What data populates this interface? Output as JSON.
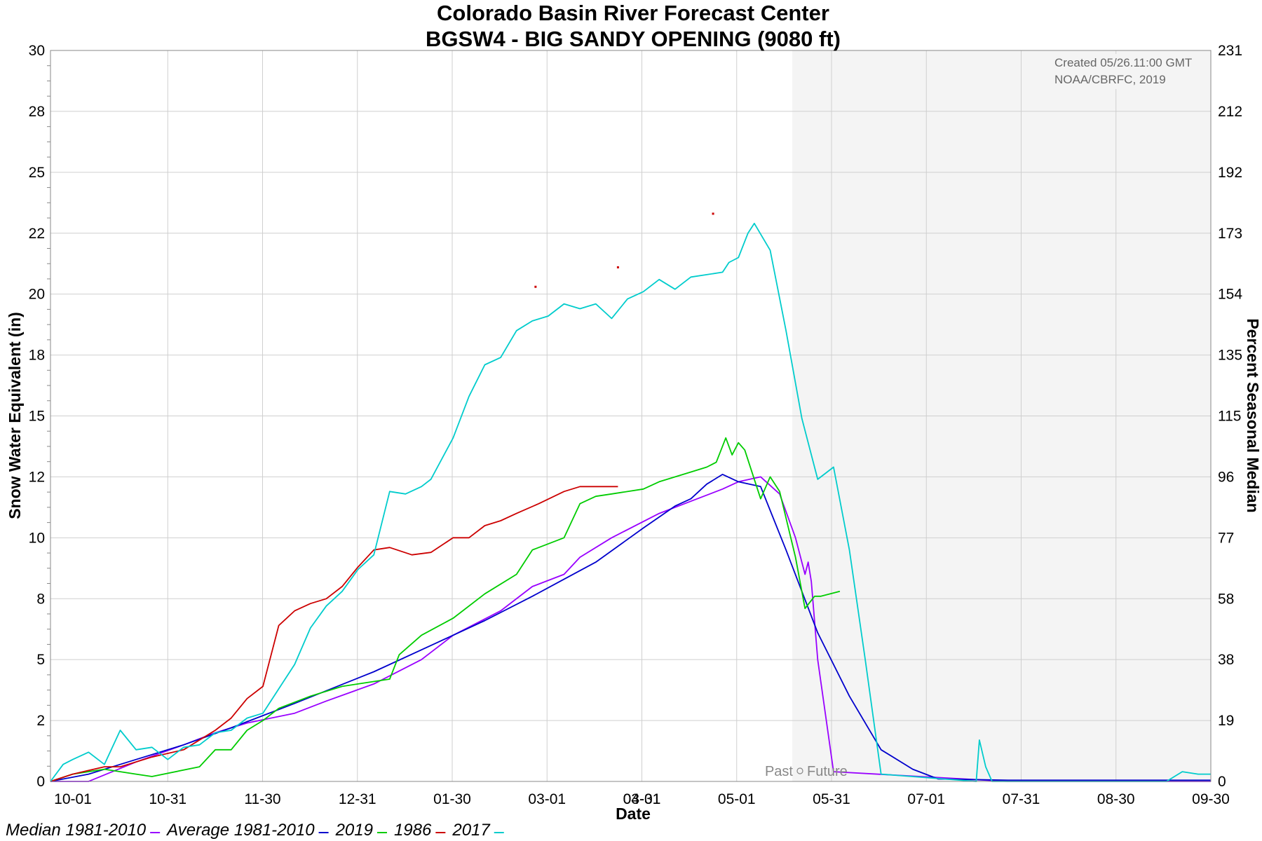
{
  "chart_data": {
    "type": "line",
    "title": "Colorado Basin River Forecast Center",
    "subtitle": "BGSW4 - BIG SANDY OPENING (9080 ft)",
    "xlabel": "Date",
    "ylabel": "Snow Water Equivalent (in)",
    "y2label": "Percent Seasonal Median",
    "x_ticks": [
      "10-01",
      "10-31",
      "11-30",
      "12-31",
      "01-30",
      "03-01",
      "03-31",
      "04-01",
      "05-01",
      "05-31",
      "07-01",
      "07-31",
      "08-30",
      "09-30"
    ],
    "y_ticks": [
      "0",
      "2",
      "5",
      "8",
      "10",
      "12",
      "15",
      "18",
      "20",
      "22",
      "25",
      "28",
      "30"
    ],
    "y2_ticks": [
      "0",
      "19",
      "38",
      "58",
      "77",
      "96",
      "115",
      "135",
      "154",
      "173",
      "192",
      "212",
      "231"
    ],
    "ylim": [
      0,
      30
    ],
    "y2lim": [
      0,
      231
    ],
    "x_range_days": [
      -2,
      364
    ],
    "grid": true,
    "forecast_start_day": 232,
    "forecast_region_label": {
      "past": "Past",
      "future": "Future"
    },
    "note": [
      "Created 05/26.11:00 GMT",
      "NOAA/CBRFC, 2019"
    ],
    "legend_position": "bottom",
    "series": [
      {
        "name": "Median 1981-2010",
        "color": "#9900ff",
        "x": [
          -2,
          10,
          25,
          40,
          50,
          60,
          75,
          85,
          100,
          115,
          125,
          140,
          150,
          160,
          165,
          175,
          190,
          200,
          210,
          215,
          222,
          228,
          233,
          236,
          237,
          238,
          240,
          245,
          300,
          320,
          360,
          364
        ],
        "y": [
          0,
          0,
          0.8,
          1.5,
          2,
          2.4,
          2.8,
          3.3,
          4,
          5,
          6,
          7,
          8,
          8.5,
          9.2,
          10,
          11,
          11.5,
          12,
          12.3,
          12.5,
          11.8,
          10,
          8.5,
          9,
          8.2,
          5,
          0.4,
          0,
          0,
          0,
          0
        ]
      },
      {
        "name": "Average 1981-2010",
        "color": "#0000cc",
        "x": [
          -2,
          10,
          25,
          40,
          55,
          75,
          100,
          120,
          135,
          150,
          160,
          170,
          185,
          195,
          200,
          205,
          210,
          215,
          222,
          226,
          230,
          235,
          240,
          250,
          260,
          270,
          278,
          300,
          330,
          360,
          364
        ],
        "y": [
          0,
          0.3,
          0.9,
          1.5,
          2.2,
          3.2,
          4.5,
          5.7,
          6.6,
          7.6,
          8.3,
          9,
          10.4,
          11.3,
          11.6,
          12.2,
          12.6,
          12.3,
          12.1,
          10.8,
          9.5,
          7.8,
          6.1,
          3.5,
          1.3,
          0.5,
          0.1,
          0.05,
          0.05,
          0.05,
          0.05
        ]
      },
      {
        "name": "2019",
        "color": "#00cc00",
        "x": [
          -2,
          5,
          15,
          25,
          30,
          45,
          50,
          55,
          60,
          65,
          70,
          80,
          90,
          95,
          105,
          108,
          115,
          125,
          135,
          145,
          150,
          160,
          165,
          170,
          175,
          185,
          190,
          200,
          205,
          208,
          211,
          213,
          215,
          217,
          222,
          225,
          228,
          233,
          236,
          239,
          241,
          247
        ],
        "y": [
          0,
          0.3,
          0.5,
          0.3,
          0.2,
          0.6,
          1.3,
          1.3,
          2.1,
          2.5,
          3,
          3.5,
          3.9,
          4,
          4.2,
          5.2,
          6,
          6.7,
          7.7,
          8.5,
          9.5,
          10,
          11.4,
          11.7,
          11.8,
          12,
          12.3,
          12.7,
          12.9,
          13.1,
          14.1,
          13.4,
          13.9,
          13.6,
          11.6,
          12.5,
          11.9,
          9.2,
          7.1,
          7.6,
          7.6,
          7.8
        ]
      },
      {
        "name": "1986",
        "color": "#cc0000",
        "x": [
          -2,
          5,
          15,
          20,
          30,
          40,
          50,
          55,
          60,
          65,
          70,
          75,
          80,
          85,
          90,
          95,
          100,
          105,
          112,
          118,
          125,
          130,
          135,
          140,
          145,
          152,
          160,
          165,
          170,
          174,
          177
        ],
        "y": [
          0,
          0.3,
          0.6,
          0.6,
          1,
          1.3,
          2.1,
          2.6,
          3.4,
          3.9,
          6.4,
          7,
          7.3,
          7.5,
          8,
          8.8,
          9.5,
          9.6,
          9.3,
          9.4,
          10,
          10,
          10.5,
          10.7,
          11,
          11.4,
          11.9,
          12.1,
          12.1,
          12.1,
          12.1
        ],
        "points": [
          [
            151,
            20.3
          ],
          [
            177,
            21.1
          ],
          [
            207,
            23.3
          ]
        ]
      },
      {
        "name": "2017",
        "color": "#00cccc",
        "x": [
          -2,
          2,
          5,
          10,
          15,
          20,
          25,
          30,
          35,
          40,
          45,
          50,
          55,
          60,
          65,
          70,
          75,
          80,
          85,
          90,
          95,
          100,
          105,
          110,
          115,
          118,
          125,
          130,
          135,
          140,
          145,
          150,
          155,
          160,
          165,
          170,
          175,
          180,
          185,
          190,
          195,
          200,
          205,
          210,
          212,
          215,
          218,
          220,
          225,
          230,
          235,
          240,
          245,
          250,
          255,
          260,
          290,
          291,
          293,
          295,
          300,
          350,
          355,
          360,
          364
        ],
        "y": [
          0,
          0.7,
          0.9,
          1.2,
          0.7,
          2.1,
          1.3,
          1.4,
          0.9,
          1.4,
          1.5,
          2,
          2.1,
          2.6,
          2.8,
          3.8,
          4.8,
          6.3,
          7.2,
          7.8,
          8.7,
          9.3,
          11.9,
          11.8,
          12.1,
          12.4,
          14.1,
          15.8,
          17.1,
          17.4,
          18.5,
          18.9,
          19.1,
          19.6,
          19.4,
          19.6,
          19.0,
          19.8,
          20.1,
          20.6,
          20.2,
          20.7,
          20.8,
          20.9,
          21.3,
          21.5,
          22.5,
          22.9,
          21.8,
          18.5,
          14.9,
          12.4,
          12.9,
          9.5,
          5,
          0.3,
          0,
          1.7,
          0.6,
          0,
          0,
          0,
          0.4,
          0.3,
          0.3
        ]
      }
    ]
  }
}
